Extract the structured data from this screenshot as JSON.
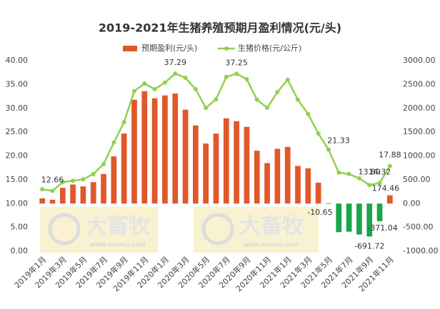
{
  "chart_data": {
    "type": "bar-line",
    "title": "2019-2021年生猪养殖预期月盈利情况(元/头)",
    "watermark": [
      "大畜牧",
      "www.dxumu.com"
    ],
    "categories": [
      "2019年1月",
      null,
      "2019年3月",
      null,
      "2019年5月",
      null,
      "2019年7月",
      null,
      "2019年9月",
      null,
      "2019年11月",
      null,
      "2020年1月",
      null,
      "2020年3月",
      null,
      "2020年5月",
      null,
      "2020年7月",
      null,
      "2020年9月",
      null,
      "2020年11月",
      null,
      "2021年1月",
      null,
      "2021年3月",
      null,
      "2021年5月",
      null,
      "2021年7月",
      null,
      "2021年9月",
      null,
      "2021年11月"
    ],
    "series": [
      {
        "name": "预期盈利(元/头)",
        "type": "bar",
        "axis": "y2",
        "color": "#e0582b",
        "negative_color": "#1aa64a",
        "values": [
          110,
          80,
          330,
          400,
          360,
          450,
          620,
          990,
          1470,
          2180,
          2360,
          2210,
          2270,
          2310,
          1970,
          1640,
          1260,
          1470,
          1790,
          1730,
          1610,
          1110,
          850,
          1150,
          1190,
          790,
          740,
          440,
          -10.65,
          -600,
          -590,
          -650,
          -691.72,
          -371.04,
          174.46
        ],
        "value_labels": [
          null,
          null,
          null,
          null,
          null,
          null,
          null,
          null,
          null,
          null,
          null,
          null,
          null,
          null,
          null,
          null,
          null,
          null,
          null,
          null,
          null,
          null,
          null,
          null,
          null,
          null,
          null,
          null,
          "-10.65",
          null,
          null,
          null,
          "-691.72",
          "-371.04",
          "174.46"
        ]
      },
      {
        "name": "生猪价格(元/公斤)",
        "type": "line",
        "axis": "y",
        "color": "#92d050",
        "values": [
          13.0,
          12.66,
          14.5,
          14.8,
          15.1,
          16.2,
          18.3,
          22.8,
          27.1,
          33.6,
          35.2,
          34.0,
          35.4,
          37.29,
          36.4,
          34.0,
          30.1,
          31.9,
          36.6,
          37.25,
          36.1,
          31.8,
          30.1,
          33.4,
          36.0,
          31.8,
          28.8,
          24.7,
          21.33,
          16.5,
          16.2,
          15.3,
          13.89,
          14.32,
          17.88
        ],
        "value_labels": [
          null,
          "12.66",
          null,
          null,
          null,
          null,
          null,
          null,
          null,
          null,
          null,
          null,
          null,
          "37.29",
          null,
          null,
          null,
          null,
          null,
          "37.25",
          null,
          null,
          null,
          null,
          null,
          null,
          null,
          null,
          "21.33",
          null,
          null,
          null,
          "13.89",
          "14.32",
          "17.88"
        ]
      }
    ],
    "ylim": [
      0,
      40
    ],
    "yticks": [
      {
        "value": 0,
        "label": "0.00"
      },
      {
        "value": 5,
        "label": "5.00"
      },
      {
        "value": 10,
        "label": "10.00"
      },
      {
        "value": 15,
        "label": "15.00"
      },
      {
        "value": 20,
        "label": "20.00"
      },
      {
        "value": 25,
        "label": "25.00"
      },
      {
        "value": 30,
        "label": "30.00"
      },
      {
        "value": 35,
        "label": "35.00"
      },
      {
        "value": 40,
        "label": "40.00"
      }
    ],
    "y2lim": [
      -1000,
      3000
    ],
    "y2ticks": [
      {
        "value": -1000,
        "label": "-1000.00"
      },
      {
        "value": -500,
        "label": "-500.00"
      },
      {
        "value": 0,
        "label": "0.00"
      },
      {
        "value": 500,
        "label": "500.00"
      },
      {
        "value": 1000,
        "label": "1000.00"
      },
      {
        "value": 1500,
        "label": "1500.00"
      },
      {
        "value": 2000,
        "label": "2000.00"
      },
      {
        "value": 2500,
        "label": "2500.00"
      },
      {
        "value": 3000,
        "label": "3000.00"
      }
    ],
    "legend": "top"
  }
}
